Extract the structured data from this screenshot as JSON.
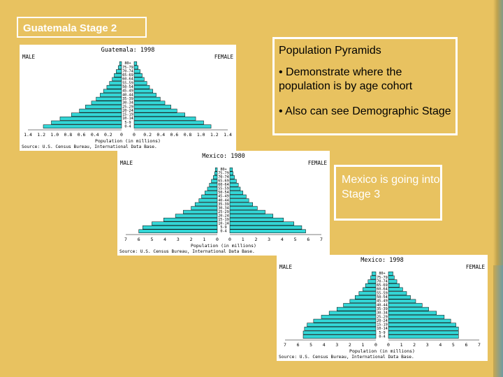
{
  "slide": {
    "title": "Guatemala Stage 2",
    "box1": {
      "heading": "Population Pyramids",
      "bullet1": "• Demonstrate where the population is by age cohort",
      "bullet2": "• Also can see Demographic Stage"
    },
    "box2": {
      "text": "Mexico is going into Stage 3"
    }
  },
  "colors": {
    "background": "#e8c260",
    "bar": "#33d6d6",
    "white": "#ffffff"
  },
  "chart_data": [
    {
      "type": "bar",
      "title": "Guatemala: 1998",
      "left_label": "MALE",
      "right_label": "FEMALE",
      "xlabel": "Population (in millions)",
      "source": "Source: U.S. Census Bureau, International Data Base.",
      "x_ticks": [
        "1.4",
        "1.2",
        "1.0",
        "0.8",
        "0.6",
        "0.4",
        "0.2",
        "0",
        "0",
        "0.2",
        "0.4",
        "0.6",
        "0.8",
        "1.0",
        "1.2",
        "1.4"
      ],
      "xlim": [
        0,
        1.4
      ],
      "age_groups": [
        "80+",
        "75-79",
        "70-74",
        "65-69",
        "60-64",
        "55-59",
        "50-54",
        "45-49",
        "40-44",
        "35-39",
        "30-34",
        "25-29",
        "20-24",
        "15-19",
        "10-14",
        "5-9",
        "0-4"
      ],
      "male": [
        0.03,
        0.05,
        0.08,
        0.11,
        0.14,
        0.18,
        0.22,
        0.27,
        0.32,
        0.38,
        0.45,
        0.54,
        0.63,
        0.75,
        0.92,
        1.05,
        1.17
      ],
      "female": [
        0.04,
        0.06,
        0.09,
        0.12,
        0.15,
        0.19,
        0.23,
        0.28,
        0.33,
        0.39,
        0.46,
        0.55,
        0.64,
        0.76,
        0.92,
        1.04,
        1.15
      ]
    },
    {
      "type": "bar",
      "title": "Mexico: 1980",
      "left_label": "MALE",
      "right_label": "FEMALE",
      "xlabel": "Population (in millions)",
      "source": "Source: U.S. Census Bureau, International Data Base.",
      "x_ticks": [
        "7",
        "6",
        "5",
        "4",
        "3",
        "2",
        "1",
        "0",
        "0",
        "1",
        "2",
        "3",
        "4",
        "5",
        "6",
        "7"
      ],
      "xlim": [
        0,
        7
      ],
      "age_groups": [
        "80+",
        "75-79",
        "70-74",
        "65-69",
        "60-64",
        "55-59",
        "50-54",
        "45-49",
        "40-44",
        "35-39",
        "30-34",
        "25-29",
        "20-24",
        "15-19",
        "10-14",
        "5-9",
        "0-4"
      ],
      "male": [
        0.15,
        0.2,
        0.3,
        0.45,
        0.6,
        0.75,
        0.95,
        1.2,
        1.4,
        1.7,
        2.0,
        2.6,
        3.2,
        4.1,
        5.0,
        5.7,
        6.0
      ],
      "female": [
        0.2,
        0.25,
        0.35,
        0.5,
        0.65,
        0.8,
        1.0,
        1.25,
        1.45,
        1.75,
        2.1,
        2.7,
        3.3,
        4.1,
        4.9,
        5.5,
        5.8
      ]
    },
    {
      "type": "bar",
      "title": "Mexico: 1998",
      "left_label": "MALE",
      "right_label": "FEMALE",
      "xlabel": "Population (in millions)",
      "source": "Source: U.S. Census Bureau, International Data Base.",
      "x_ticks": [
        "7",
        "6",
        "5",
        "4",
        "3",
        "2",
        "1",
        "0",
        "0",
        "1",
        "2",
        "3",
        "4",
        "5",
        "6",
        "7"
      ],
      "xlim": [
        0,
        7
      ],
      "age_groups": [
        "80+",
        "75-79",
        "70-74",
        "65-69",
        "60-64",
        "55-59",
        "50-54",
        "45-49",
        "40-44",
        "35-39",
        "30-34",
        "25-29",
        "20-24",
        "15-19",
        "10-14",
        "5-9",
        "0-4"
      ],
      "male": [
        0.3,
        0.4,
        0.6,
        0.8,
        1.0,
        1.3,
        1.6,
        2.0,
        2.5,
        3.0,
        3.6,
        4.2,
        4.8,
        5.3,
        5.5,
        5.6,
        5.6
      ],
      "female": [
        0.35,
        0.45,
        0.65,
        0.85,
        1.1,
        1.4,
        1.7,
        2.1,
        2.6,
        3.1,
        3.7,
        4.3,
        4.8,
        5.2,
        5.4,
        5.4,
        5.4
      ]
    }
  ]
}
